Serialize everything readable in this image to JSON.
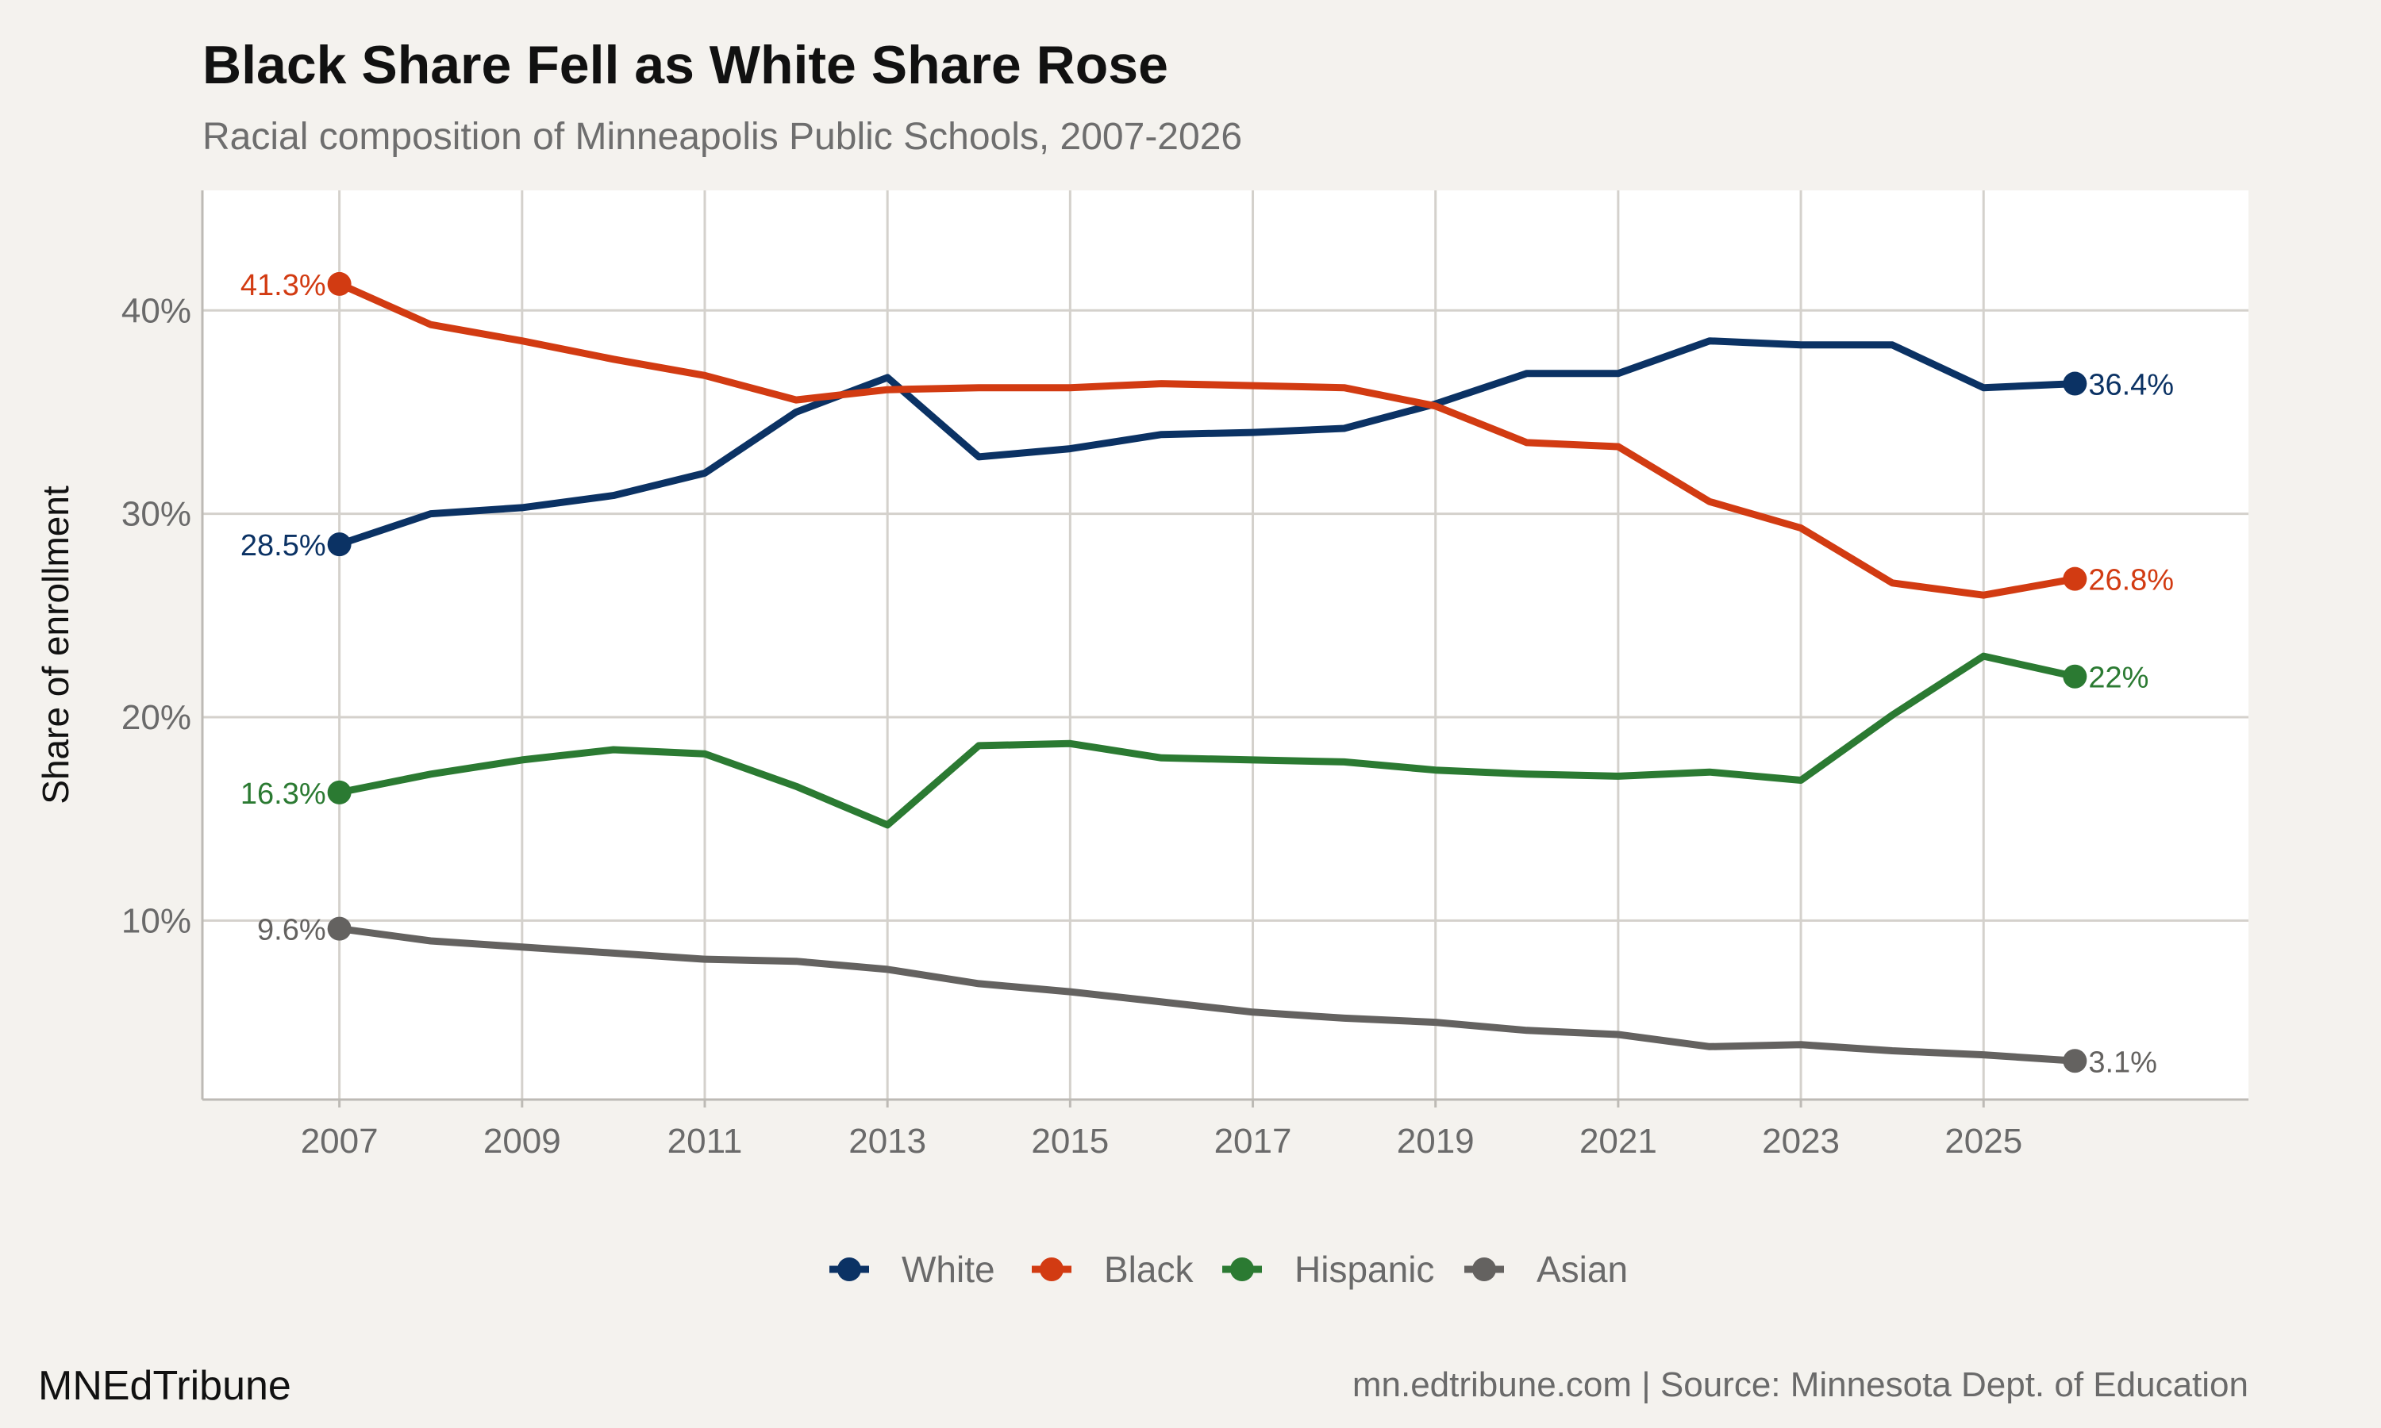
{
  "header": {
    "title": "Black Share Fell as White Share Rose",
    "subtitle": "Racial composition of Minneapolis Public Schools, 2007-2026"
  },
  "footer": {
    "brand": "MNEdTribune",
    "source": "mn.edtribune.com | Source: Minnesota Dept. of Education"
  },
  "chart_data": {
    "type": "line",
    "title": "Black Share Fell as White Share Rose",
    "subtitle": "Racial composition of Minneapolis Public Schools, 2007-2026",
    "xlabel": "",
    "ylabel": "Share of enrollment",
    "x": [
      2007,
      2008,
      2009,
      2010,
      2011,
      2012,
      2013,
      2014,
      2015,
      2016,
      2017,
      2018,
      2019,
      2020,
      2021,
      2022,
      2023,
      2024,
      2025,
      2026
    ],
    "x_ticks": [
      "2007",
      "2009",
      "2011",
      "2013",
      "2015",
      "2017",
      "2019",
      "2021",
      "2023",
      "2025"
    ],
    "y_ticks": [
      "10%",
      "20%",
      "30%",
      "40%"
    ],
    "ylim": [
      1.2,
      45.9
    ],
    "xlim": [
      2005.5,
      2027.9
    ],
    "grid": true,
    "legend_position": "bottom",
    "series": [
      {
        "name": "White",
        "color": "#0b3264",
        "values": [
          28.5,
          30.0,
          30.3,
          30.9,
          32.0,
          35.0,
          36.7,
          32.8,
          33.2,
          33.9,
          34.0,
          34.2,
          35.4,
          36.9,
          36.9,
          38.5,
          38.3,
          38.3,
          36.2,
          36.4
        ],
        "start_label": "28.5%",
        "end_label": "36.4%"
      },
      {
        "name": "Black",
        "color": "#d23b12",
        "values": [
          41.3,
          39.3,
          38.5,
          37.6,
          36.8,
          35.6,
          36.1,
          36.2,
          36.2,
          36.4,
          36.3,
          36.2,
          35.3,
          33.5,
          33.3,
          30.6,
          29.3,
          26.6,
          26.0,
          26.8
        ],
        "start_label": "41.3%",
        "end_label": "26.8%"
      },
      {
        "name": "Hispanic",
        "color": "#2b7a32",
        "values": [
          16.3,
          17.2,
          17.9,
          18.4,
          18.2,
          16.6,
          14.7,
          18.6,
          18.7,
          18.0,
          17.9,
          17.8,
          17.4,
          17.2,
          17.1,
          17.3,
          16.9,
          20.1,
          23.0,
          22.0
        ],
        "start_label": "16.3%",
        "end_label": "22%"
      },
      {
        "name": "Asian",
        "color": "#646260",
        "values": [
          9.6,
          9.0,
          8.7,
          8.4,
          8.1,
          8.0,
          7.6,
          6.9,
          6.5,
          6.0,
          5.5,
          5.2,
          5.0,
          4.6,
          4.4,
          3.8,
          3.9,
          3.6,
          3.4,
          3.1
        ],
        "start_label": "9.6%",
        "end_label": "3.1%"
      }
    ]
  }
}
